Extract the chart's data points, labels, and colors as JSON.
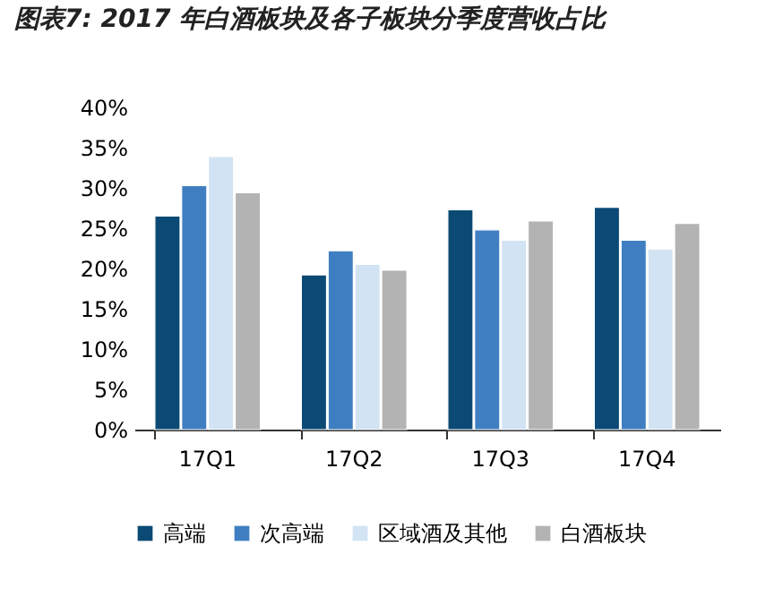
{
  "chart_data": {
    "type": "bar",
    "title": "图表7: 2017 年白酒板块及各子板块分季度营收占比",
    "categories": [
      "17Q1",
      "17Q2",
      "17Q3",
      "17Q4"
    ],
    "series": [
      {
        "name": "高端",
        "color": "#0b4a74",
        "values": [
          26.5,
          19.2,
          27.3,
          27.6
        ]
      },
      {
        "name": "次高端",
        "color": "#3f7fc1",
        "values": [
          30.3,
          22.2,
          24.8,
          23.5
        ]
      },
      {
        "name": "区域酒及其他",
        "color": "#d2e3f3",
        "values": [
          33.9,
          20.5,
          23.5,
          22.4
        ]
      },
      {
        "name": "白酒板块",
        "color": "#b3b3b3",
        "values": [
          29.4,
          19.8,
          25.9,
          25.6
        ]
      }
    ],
    "ylim": [
      0,
      40
    ],
    "yticks": [
      {
        "value": 0,
        "label": "0%"
      },
      {
        "value": 5,
        "label": "5%"
      },
      {
        "value": 10,
        "label": "10%"
      },
      {
        "value": 15,
        "label": "15%"
      },
      {
        "value": 20,
        "label": "20%"
      },
      {
        "value": 25,
        "label": "25%"
      },
      {
        "value": 30,
        "label": "30%"
      },
      {
        "value": 35,
        "label": "35%"
      },
      {
        "value": 40,
        "label": "40%"
      }
    ],
    "grid": false,
    "legend": "bottom"
  }
}
